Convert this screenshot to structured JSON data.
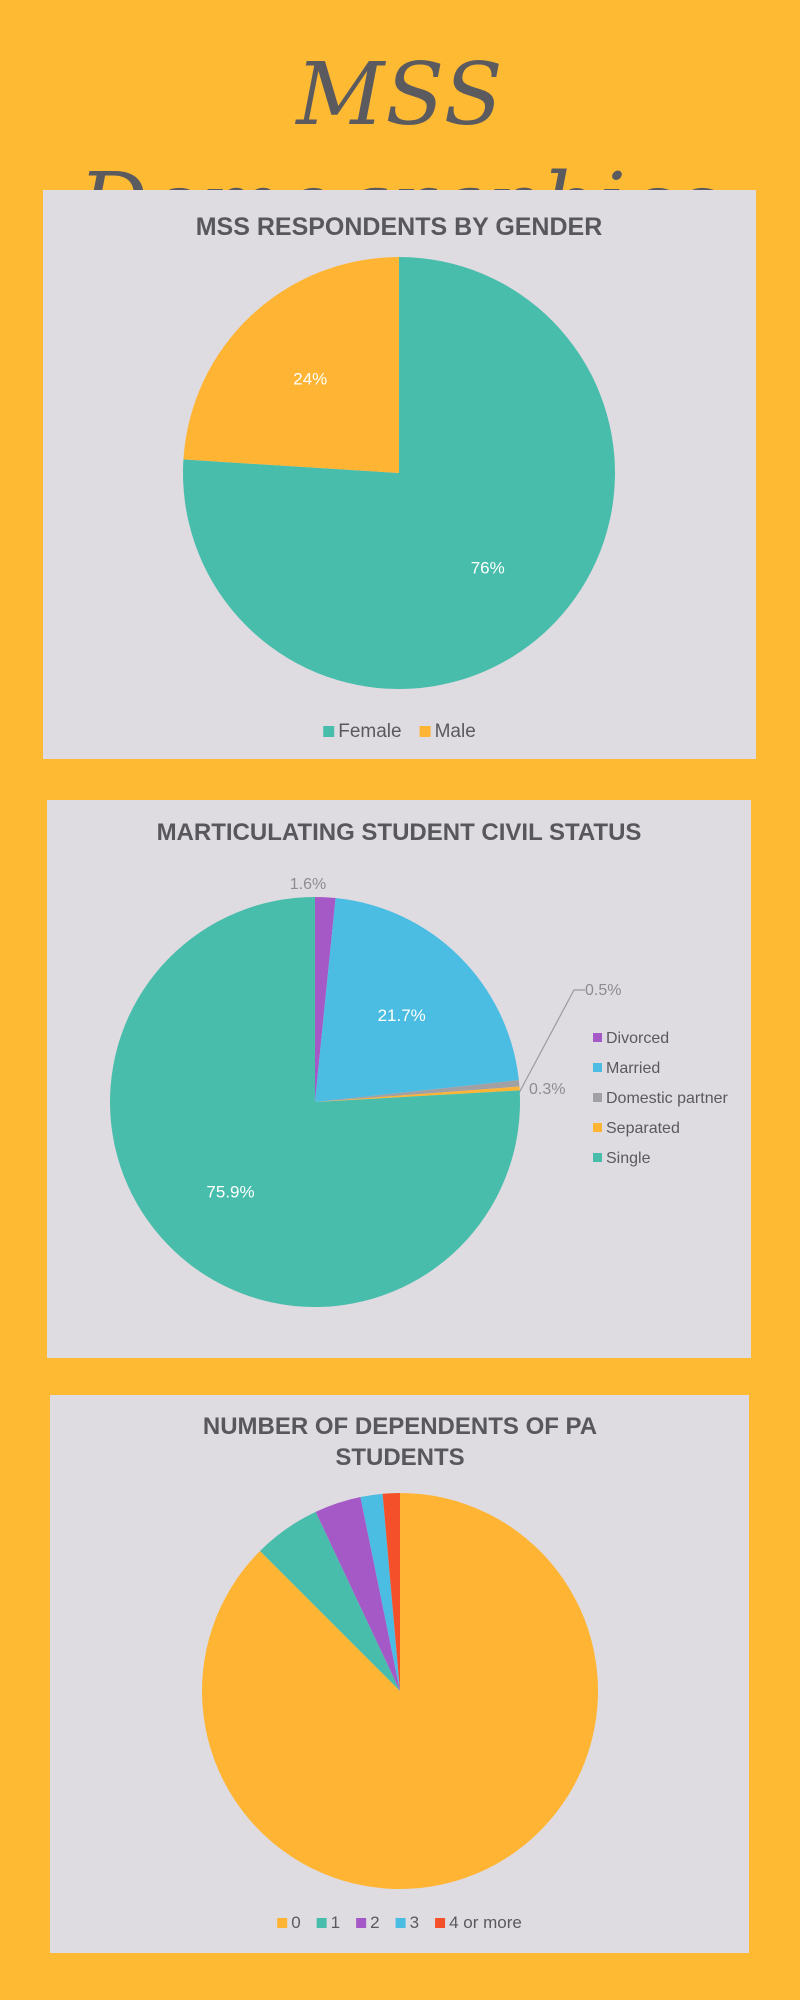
{
  "page": {
    "title": "MSS Demographics"
  },
  "chart_data": [
    {
      "type": "pie",
      "title": "MSS RESPONDENTS BY GENDER",
      "legend_position": "bottom",
      "slices": [
        {
          "label": "Female",
          "value": 76,
          "display": "76%",
          "color": "#49BDAB"
        },
        {
          "label": "Male",
          "value": 24,
          "display": "24%",
          "color": "#FFB533"
        }
      ]
    },
    {
      "type": "pie",
      "title": "MARTICULATING STUDENT CIVIL STATUS",
      "legend_position": "right",
      "slices": [
        {
          "label": "Divorced",
          "value": 1.6,
          "display": "1.6%",
          "color": "#A459C7"
        },
        {
          "label": "Married",
          "value": 21.7,
          "display": "21.7%",
          "color": "#4BBDE2"
        },
        {
          "label": "Domestic partner",
          "value": 0.5,
          "display": "0.5%",
          "color": "#A0A0A5"
        },
        {
          "label": "Separated",
          "value": 0.3,
          "display": "0.3%",
          "color": "#FFB533"
        },
        {
          "label": "Single",
          "value": 75.9,
          "display": "75.9%",
          "color": "#49BDAB"
        }
      ]
    },
    {
      "type": "pie",
      "title": "NUMBER OF DEPENDENTS OF PA STUDENTS",
      "title_lines": [
        "NUMBER OF DEPENDENTS OF PA",
        "STUDENTS"
      ],
      "legend_position": "bottom",
      "slices": [
        {
          "label": "0",
          "value": 87.5,
          "color": "#FFB533"
        },
        {
          "label": "1",
          "value": 5.5,
          "color": "#49BDAB"
        },
        {
          "label": "2",
          "value": 3.8,
          "color": "#A459C7"
        },
        {
          "label": "3",
          "value": 1.8,
          "color": "#4BBDE2"
        },
        {
          "label": "4 or more",
          "value": 1.4,
          "color": "#F4502A"
        }
      ]
    }
  ]
}
